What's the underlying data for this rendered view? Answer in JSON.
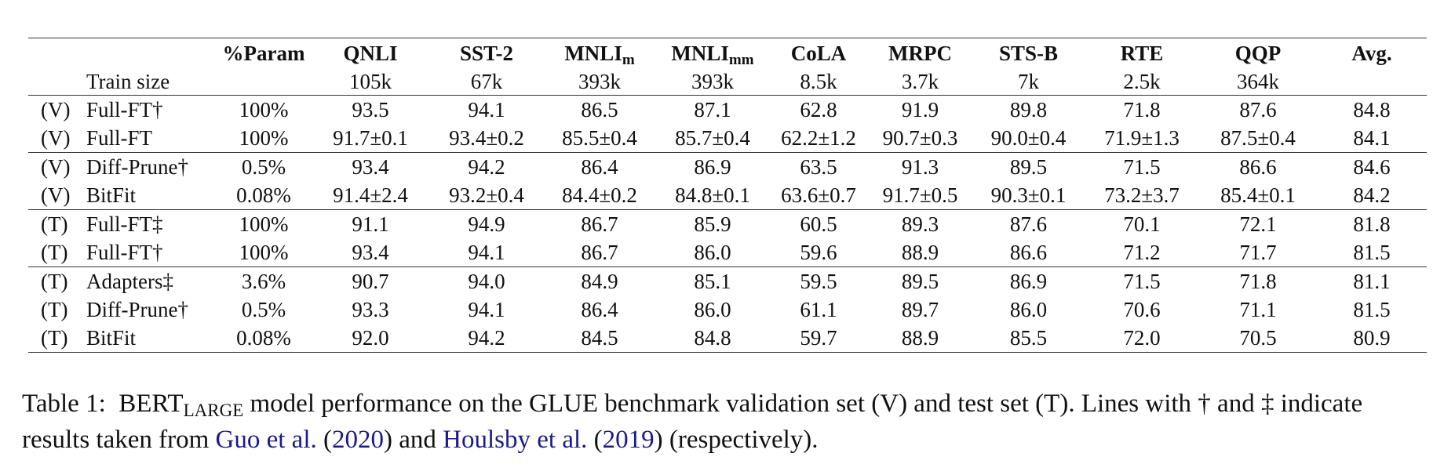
{
  "table": {
    "corner": "",
    "columns": [
      {
        "main": "%Param",
        "sub": ""
      },
      {
        "main": "QNLI",
        "sub": ""
      },
      {
        "main": "SST-2",
        "sub": ""
      },
      {
        "main": "MNLI",
        "sub": "m"
      },
      {
        "main": "MNLI",
        "sub": "mm"
      },
      {
        "main": "CoLA",
        "sub": ""
      },
      {
        "main": "MRPC",
        "sub": ""
      },
      {
        "main": "STS-B",
        "sub": ""
      },
      {
        "main": "RTE",
        "sub": ""
      },
      {
        "main": "QQP",
        "sub": ""
      },
      {
        "main": "Avg.",
        "sub": ""
      }
    ],
    "train_size_label": "Train size",
    "train_sizes": [
      "",
      "105k",
      "67k",
      "393k",
      "393k",
      "8.5k",
      "3.7k",
      "7k",
      "2.5k",
      "364k",
      ""
    ],
    "groups": [
      {
        "rows": [
          {
            "tag": "(V)",
            "method": "Full-FT†",
            "cells": [
              {
                "v": "100%",
                "b": false
              },
              {
                "v": "93.5",
                "b": true
              },
              {
                "v": "94.1",
                "b": true
              },
              {
                "v": "86.5",
                "b": true
              },
              {
                "v": "87.1",
                "b": true
              },
              {
                "v": "62.8",
                "b": true
              },
              {
                "v": "91.9",
                "b": true
              },
              {
                "v": "89.8",
                "b": false
              },
              {
                "v": "71.8",
                "b": false
              },
              {
                "v": "87.6",
                "b": true
              },
              {
                "v": "84.8",
                "b": true
              }
            ]
          },
          {
            "tag": "(V)",
            "method": "Full-FT",
            "cells": [
              {
                "v": "100%",
                "b": false
              },
              {
                "v": "91.7±0.1",
                "b": false
              },
              {
                "v": "93.4±0.2",
                "b": false
              },
              {
                "v": "85.5±0.4",
                "b": false
              },
              {
                "v": "85.7±0.4",
                "b": false
              },
              {
                "v": "62.2±1.2",
                "b": false
              },
              {
                "v": "90.7±0.3",
                "b": false
              },
              {
                "v": "90.0±0.4",
                "b": true
              },
              {
                "v": "71.9±1.3",
                "b": true
              },
              {
                "v": "87.5±0.4",
                "b": false
              },
              {
                "v": "84.1",
                "b": false
              }
            ]
          }
        ]
      },
      {
        "rows": [
          {
            "tag": "(V)",
            "method": "Diff-Prune†",
            "cells": [
              {
                "v": "0.5%",
                "b": false
              },
              {
                "v": "93.4",
                "b": true
              },
              {
                "v": "94.2",
                "b": true
              },
              {
                "v": "86.4",
                "b": true
              },
              {
                "v": "86.9",
                "b": true
              },
              {
                "v": "63.5",
                "b": false
              },
              {
                "v": "91.3",
                "b": false
              },
              {
                "v": "89.5",
                "b": false
              },
              {
                "v": "71.5",
                "b": false
              },
              {
                "v": "86.6",
                "b": true
              },
              {
                "v": "84.6",
                "b": true
              }
            ]
          },
          {
            "tag": "(V)",
            "method": "BitFit",
            "cells": [
              {
                "v": "0.08%",
                "b": false
              },
              {
                "v": "91.4±2.4",
                "b": false
              },
              {
                "v": "93.2±0.4",
                "b": false
              },
              {
                "v": "84.4±0.2",
                "b": false
              },
              {
                "v": "84.8±0.1",
                "b": false
              },
              {
                "v": "63.6±0.7",
                "b": true
              },
              {
                "v": "91.7±0.5",
                "b": true
              },
              {
                "v": "90.3±0.1",
                "b": true
              },
              {
                "v": "73.2±3.7",
                "b": true
              },
              {
                "v": "85.4±0.1",
                "b": false
              },
              {
                "v": "84.2",
                "b": false
              }
            ]
          }
        ]
      },
      {
        "rows": [
          {
            "tag": "(T)",
            "method": "Full-FT‡",
            "cells": [
              {
                "v": "100%",
                "b": false
              },
              {
                "v": "91.1",
                "b": false
              },
              {
                "v": "94.9",
                "b": true
              },
              {
                "v": "86.7",
                "b": false
              },
              {
                "v": "85.9",
                "b": false
              },
              {
                "v": "60.5",
                "b": true
              },
              {
                "v": "89.3",
                "b": true
              },
              {
                "v": "87.6",
                "b": true
              },
              {
                "v": "70.1",
                "b": false
              },
              {
                "v": "72.1",
                "b": true
              },
              {
                "v": "81.8",
                "b": true
              }
            ]
          },
          {
            "tag": "(T)",
            "method": "Full-FT†",
            "cells": [
              {
                "v": "100%",
                "b": false
              },
              {
                "v": "93.4",
                "b": true
              },
              {
                "v": "94.1",
                "b": false
              },
              {
                "v": "86.7",
                "b": false
              },
              {
                "v": "86.0",
                "b": true
              },
              {
                "v": "59.6",
                "b": false
              },
              {
                "v": "88.9",
                "b": false
              },
              {
                "v": "86.6",
                "b": false
              },
              {
                "v": "71.2",
                "b": true
              },
              {
                "v": "71.7",
                "b": false
              },
              {
                "v": "81.5",
                "b": false
              }
            ]
          }
        ]
      },
      {
        "rows": [
          {
            "tag": "(T)",
            "method": "Adapters‡",
            "cells": [
              {
                "v": "3.6%",
                "b": false
              },
              {
                "v": "90.7",
                "b": false
              },
              {
                "v": "94.0",
                "b": false
              },
              {
                "v": "84.9",
                "b": false
              },
              {
                "v": "85.1",
                "b": false
              },
              {
                "v": "59.5",
                "b": false
              },
              {
                "v": "89.5",
                "b": false
              },
              {
                "v": "86.9",
                "b": true
              },
              {
                "v": "71.5",
                "b": false
              },
              {
                "v": "71.8",
                "b": true
              },
              {
                "v": "81.1",
                "b": false
              }
            ]
          },
          {
            "tag": "(T)",
            "method": "Diff-Prune†",
            "cells": [
              {
                "v": "0.5%",
                "b": false
              },
              {
                "v": "93.3",
                "b": true
              },
              {
                "v": "94.1",
                "b": false
              },
              {
                "v": "86.4",
                "b": true
              },
              {
                "v": "86.0",
                "b": true
              },
              {
                "v": "61.1",
                "b": true
              },
              {
                "v": "89.7",
                "b": true
              },
              {
                "v": "86.0",
                "b": false
              },
              {
                "v": "70.6",
                "b": false
              },
              {
                "v": "71.1",
                "b": false
              },
              {
                "v": "81.5",
                "b": true
              }
            ]
          },
          {
            "tag": "(T)",
            "method": "BitFit",
            "cells": [
              {
                "v": "0.08%",
                "b": false
              },
              {
                "v": "92.0",
                "b": false
              },
              {
                "v": "94.2",
                "b": true
              },
              {
                "v": "84.5",
                "b": false
              },
              {
                "v": "84.8",
                "b": false
              },
              {
                "v": "59.7",
                "b": false
              },
              {
                "v": "88.9",
                "b": false
              },
              {
                "v": "85.5",
                "b": false
              },
              {
                "v": "72.0",
                "b": true
              },
              {
                "v": "70.5",
                "b": false
              },
              {
                "v": "80.9",
                "b": false
              }
            ]
          }
        ]
      }
    ]
  },
  "caption": {
    "label": "Table 1:",
    "model": "BERT",
    "model_sub": "LARGE",
    "text1": " model performance on the GLUE benchmark validation set (V) and test set (T). Lines with † and ‡ indicate results taken from ",
    "ref1_authors": "Guo et al.",
    "ref1_open": " (",
    "ref1_year": "2020",
    "ref1_close": ")",
    "and": " and ",
    "ref2_authors": "Houlsby et al.",
    "ref2_open": " (",
    "ref2_year": "2019",
    "ref2_close": ")",
    "text2": " (respectively).",
    "link_color": "#1a1a8c"
  }
}
